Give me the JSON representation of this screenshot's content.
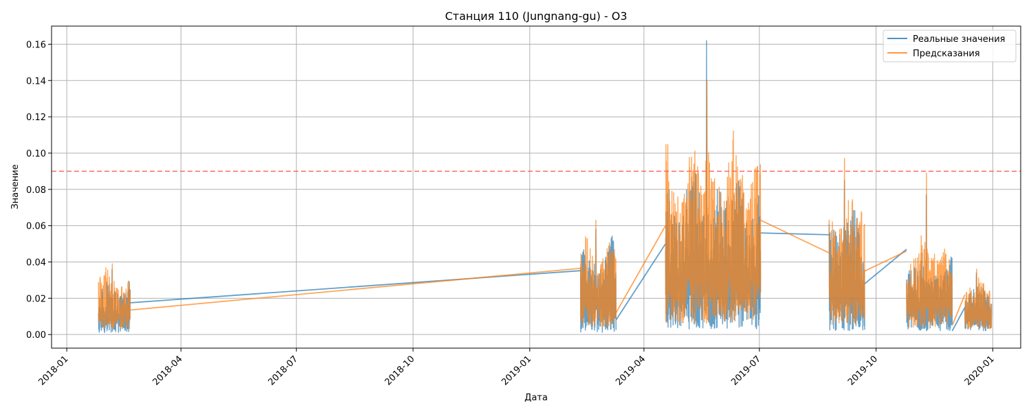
{
  "chart_data": {
    "type": "line",
    "title": "Станция 110 (Jungnang-gu) - O3",
    "xlabel": "Дата",
    "ylabel": "Значение",
    "xlim": [
      "2017-12-20",
      "2020-01-23"
    ],
    "ylim": [
      -0.0075,
      0.17
    ],
    "grid": true,
    "legend_position": "upper right",
    "x_ticks": [
      "2018-01",
      "2018-04",
      "2018-07",
      "2018-10",
      "2019-01",
      "2019-04",
      "2019-07",
      "2019-10",
      "2020-01"
    ],
    "y_ticks": [
      "0.00",
      "0.02",
      "0.04",
      "0.06",
      "0.08",
      "0.10",
      "0.12",
      "0.14",
      "0.16"
    ],
    "threshold": {
      "value": 0.09,
      "color": "#ff6666",
      "style": "dashed"
    },
    "series": [
      {
        "name": "Реальные значения",
        "color": "#1f77b4",
        "segments": [
          {
            "start": "2018-01-26",
            "end": "2018-02-20",
            "min": 0.001,
            "max": 0.034,
            "peak": 0.036
          },
          {
            "start": "2019-02-10",
            "end": "2019-03-10",
            "min": 0.001,
            "max": 0.055,
            "peak": 0.058
          },
          {
            "start": "2019-04-18",
            "end": "2019-07-02",
            "min": 0.003,
            "max": 0.095,
            "peak": 0.162
          },
          {
            "start": "2019-08-25",
            "end": "2019-09-22",
            "min": 0.002,
            "max": 0.075,
            "peak": 0.085
          },
          {
            "start": "2019-10-25",
            "end": "2019-11-30",
            "min": 0.002,
            "max": 0.048,
            "peak": 0.077
          },
          {
            "start": "2019-12-10",
            "end": "2019-12-31",
            "min": 0.002,
            "max": 0.03,
            "peak": 0.034
          }
        ],
        "connectors": [
          {
            "from": [
              "2018-02-20",
              0.0175
            ],
            "to": [
              "2019-02-10",
              0.0352
            ]
          },
          {
            "from": [
              "2019-03-10",
              0.008
            ],
            "to": [
              "2019-04-18",
              0.05
            ]
          },
          {
            "from": [
              "2019-07-02",
              0.056
            ],
            "to": [
              "2019-08-25",
              0.055
            ]
          },
          {
            "from": [
              "2019-09-22",
              0.028
            ],
            "to": [
              "2019-10-25",
              0.047
            ]
          },
          {
            "from": [
              "2019-11-30",
              0.002
            ],
            "to": [
              "2019-12-10",
              0.015
            ]
          }
        ]
      },
      {
        "name": "Предсказания",
        "color": "#ff7f0e",
        "segments": [
          {
            "start": "2018-01-26",
            "end": "2018-02-20",
            "min": 0.003,
            "max": 0.037,
            "peak": 0.039
          },
          {
            "start": "2019-02-10",
            "end": "2019-03-10",
            "min": 0.004,
            "max": 0.058,
            "peak": 0.063
          },
          {
            "start": "2019-04-18",
            "end": "2019-07-02",
            "min": 0.006,
            "max": 0.115,
            "peak": 0.14
          },
          {
            "start": "2019-08-25",
            "end": "2019-09-22",
            "min": 0.005,
            "max": 0.085,
            "peak": 0.097
          },
          {
            "start": "2019-10-25",
            "end": "2019-11-30",
            "min": 0.004,
            "max": 0.058,
            "peak": 0.089
          },
          {
            "start": "2019-12-10",
            "end": "2019-12-31",
            "min": 0.003,
            "max": 0.033,
            "peak": 0.036
          }
        ],
        "connectors": [
          {
            "from": [
              "2018-02-20",
              0.0135
            ],
            "to": [
              "2019-02-10",
              0.0365
            ]
          },
          {
            "from": [
              "2019-03-10",
              0.012
            ],
            "to": [
              "2019-04-18",
              0.06
            ]
          },
          {
            "from": [
              "2019-07-02",
              0.063
            ],
            "to": [
              "2019-08-25",
              0.045
            ]
          },
          {
            "from": [
              "2019-09-22",
              0.035
            ],
            "to": [
              "2019-10-25",
              0.046
            ]
          },
          {
            "from": [
              "2019-11-30",
              0.005
            ],
            "to": [
              "2019-12-10",
              0.022
            ]
          }
        ]
      }
    ]
  }
}
